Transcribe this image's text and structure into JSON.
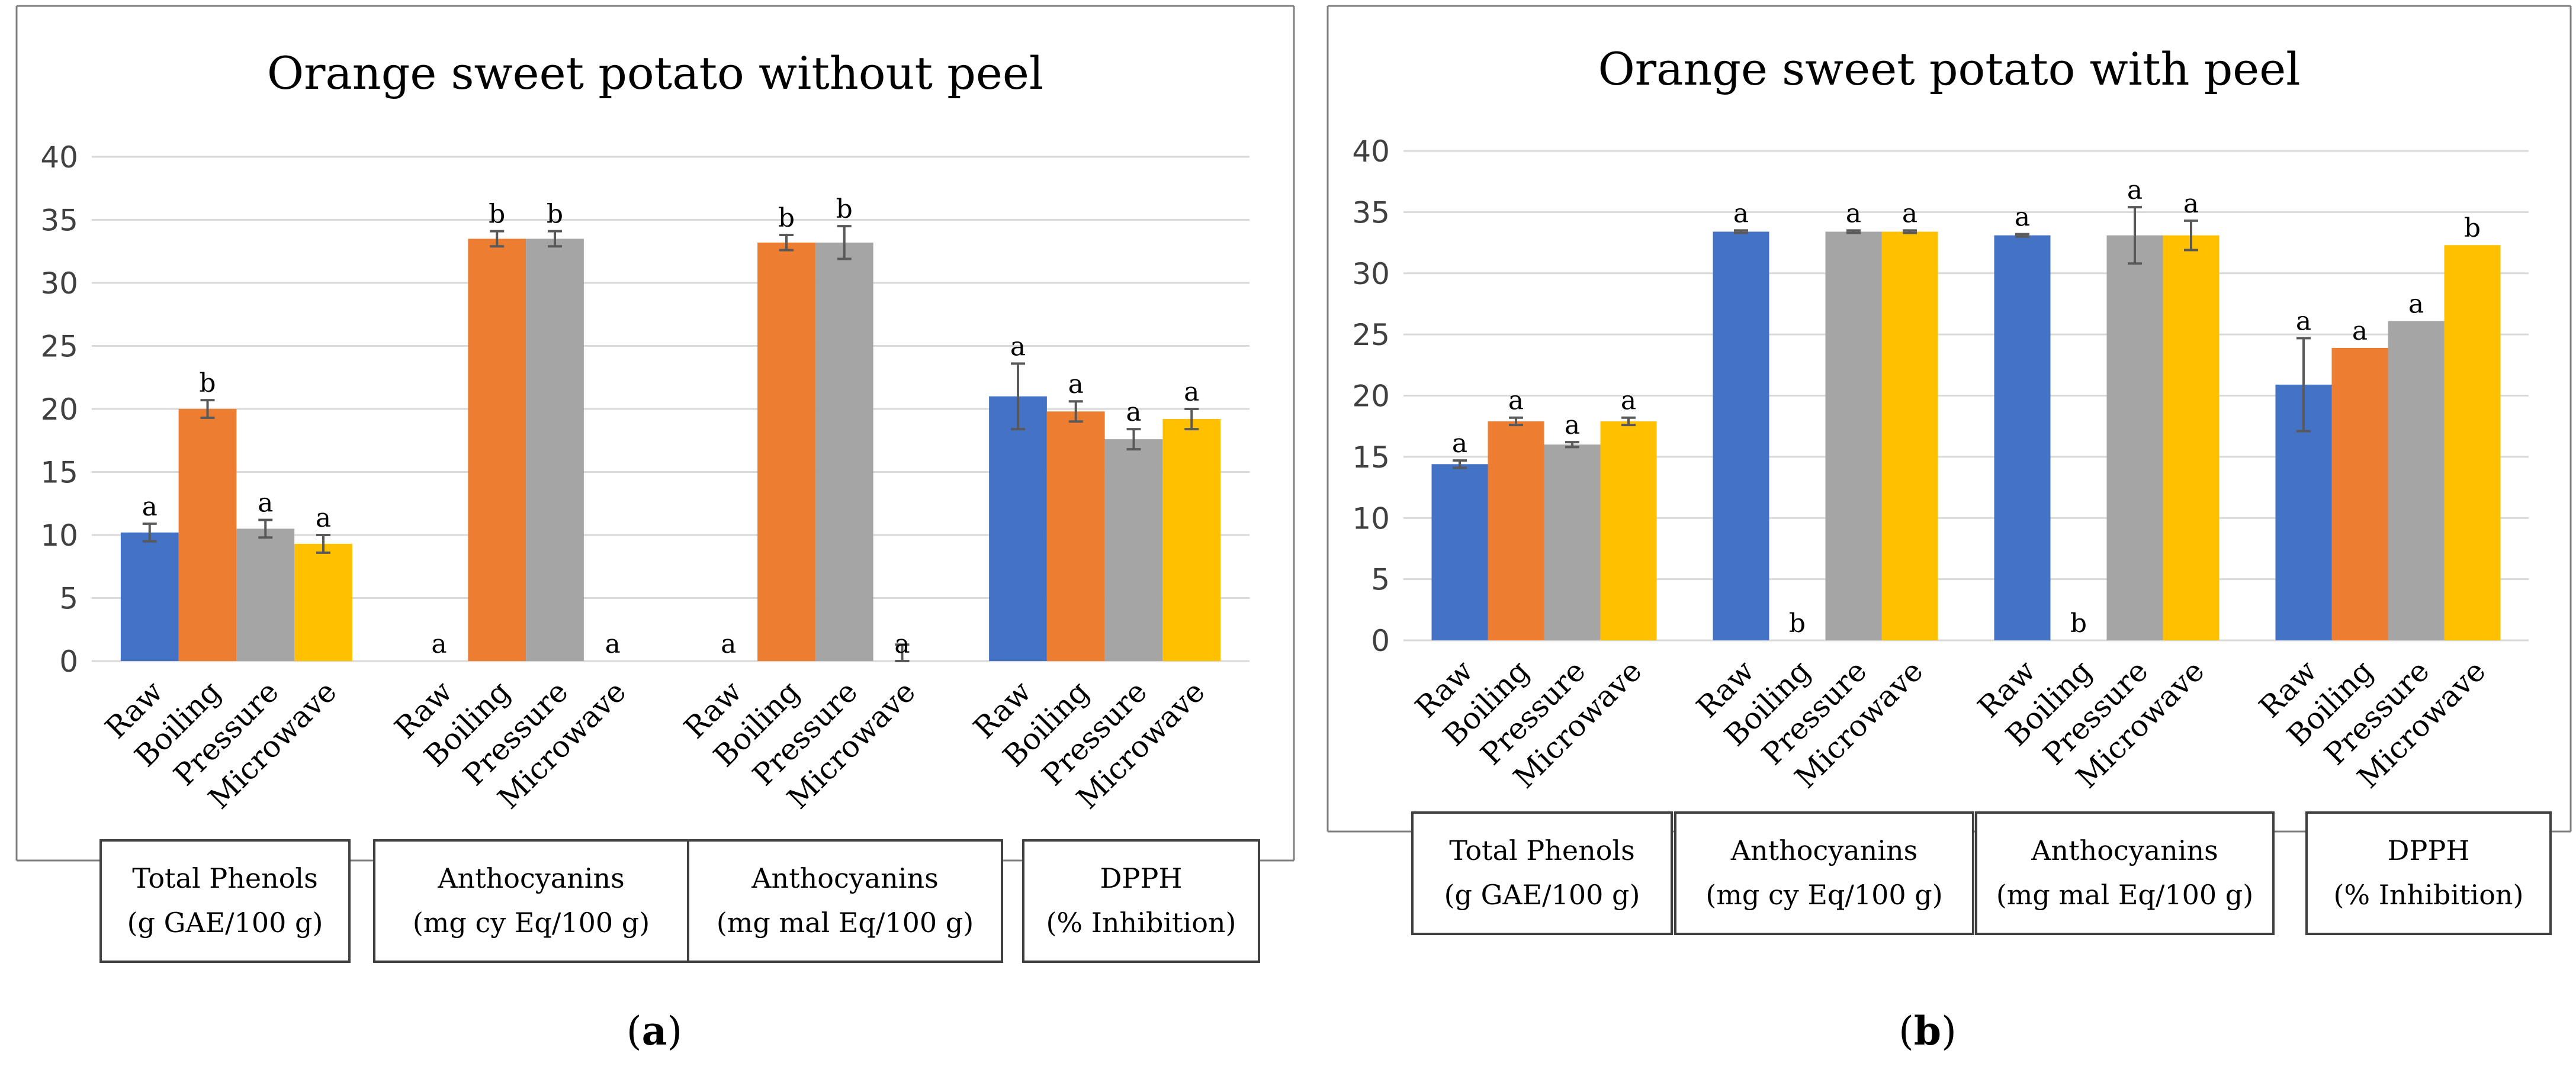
{
  "colors": {
    "Raw": "#4472C4",
    "Boiling": "#ED7D31",
    "Pressure": "#A5A5A5",
    "Microwave": "#FFC000",
    "grid": "#D9D9D9",
    "text": "#404040",
    "frame": "#7F7F7F",
    "error_bar": "#595959"
  },
  "chart_data": [
    {
      "panel_label": "a",
      "type": "bar",
      "title": "Orange sweet potato without peel",
      "ylim": [
        0,
        40
      ],
      "yticks": [
        0,
        5,
        10,
        15,
        20,
        25,
        30,
        35,
        40
      ],
      "series_names": [
        "Raw",
        "Boiling",
        "Pressure",
        "Microwave"
      ],
      "groups": [
        {
          "label_line1": "Total Phenols",
          "label_line2": "(g GAE/100 g)",
          "values": [
            10.2,
            20.0,
            10.5,
            9.3
          ],
          "errors": [
            0.7,
            0.7,
            0.7,
            0.7
          ],
          "letters": [
            "a",
            "b",
            "a",
            "a"
          ]
        },
        {
          "label_line1": "Anthocyanins",
          "label_line2": "(mg cy Eq/100 g)",
          "values": [
            0,
            33.5,
            33.5,
            0
          ],
          "errors": [
            0,
            0.6,
            0.6,
            0
          ],
          "letters": [
            "a",
            "b",
            "b",
            "a"
          ]
        },
        {
          "label_line1": "Anthocyanins",
          "label_line2": "(mg mal Eq/100 g)",
          "values": [
            0,
            33.2,
            33.2,
            0
          ],
          "errors": [
            0,
            0.6,
            1.3,
            1.3
          ],
          "letters": [
            "a",
            "b",
            "b",
            "a"
          ]
        },
        {
          "label_line1": "DPPH",
          "label_line2": "(% Inhibition)",
          "values": [
            21.0,
            19.8,
            17.6,
            19.2
          ],
          "errors": [
            2.6,
            0.8,
            0.8,
            0.8
          ],
          "letters": [
            "a",
            "a",
            "a",
            "a"
          ]
        }
      ]
    },
    {
      "panel_label": "b",
      "type": "bar",
      "title": "Orange sweet potato with peel",
      "ylim": [
        0,
        40
      ],
      "yticks": [
        0,
        5,
        10,
        15,
        20,
        25,
        30,
        35,
        40
      ],
      "series_names": [
        "Raw",
        "Boiling",
        "Pressure",
        "Microwave"
      ],
      "groups": [
        {
          "label_line1": "Total Phenols",
          "label_line2": "(g GAE/100 g)",
          "values": [
            14.4,
            17.9,
            16.0,
            17.9
          ],
          "errors": [
            0.3,
            0.3,
            0.2,
            0.3
          ],
          "letters": [
            "a",
            "a",
            "a",
            "a"
          ]
        },
        {
          "label_line1": "Anthocyanins",
          "label_line2": "(mg cy Eq/100 g)",
          "values": [
            33.4,
            0,
            33.4,
            33.4
          ],
          "errors": [
            0.1,
            0,
            0.1,
            0.1
          ],
          "letters": [
            "a",
            "b",
            "a",
            "a"
          ]
        },
        {
          "label_line1": "Anthocyanins",
          "label_line2": "(mg mal Eq/100 g)",
          "values": [
            33.1,
            0,
            33.1,
            33.1
          ],
          "errors": [
            0.1,
            0,
            2.3,
            1.2
          ],
          "letters": [
            "a",
            "b",
            "a",
            "a"
          ]
        },
        {
          "label_line1": "DPPH",
          "label_line2": "(% Inhibition)",
          "values": [
            20.9,
            23.9,
            26.1,
            32.3
          ],
          "errors": [
            3.8,
            0,
            0,
            0
          ],
          "letters": [
            "a",
            "a",
            "a",
            "b"
          ]
        }
      ]
    }
  ]
}
